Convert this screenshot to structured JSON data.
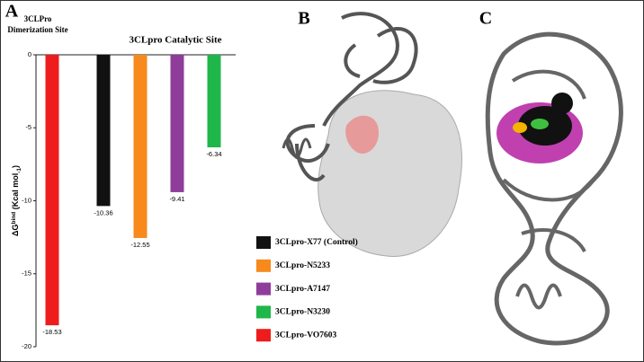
{
  "chart_data": {
    "type": "bar",
    "panel_labels": [
      "A",
      "B",
      "C"
    ],
    "y_label_parts": [
      "ΔG",
      "bind",
      " (Kcal mol",
      "-1",
      ")"
    ],
    "ylim": [
      -20,
      0
    ],
    "yticks": [
      0,
      -5,
      -10,
      -15,
      -20
    ],
    "series": [
      {
        "name": "3CLpro-X77 (Control)",
        "color": "#111111",
        "values": [
          -10.36
        ]
      },
      {
        "name": "3CLpro-N5233",
        "color": "#f7891d",
        "values": [
          -12.55
        ]
      },
      {
        "name": "3CLpro-A7147",
        "color": "#8e3d9a",
        "values": [
          -9.41
        ]
      },
      {
        "name": "3CLpro-N3230",
        "color": "#1fb64a",
        "values": [
          -6.34
        ]
      },
      {
        "name": "3CLpro-VO7603",
        "color": "#ee1c1c",
        "values": [
          -18.53
        ]
      }
    ],
    "groups": [
      {
        "label": [
          "3CLPro",
          "Dimerization Site"
        ],
        "series": [
          4
        ]
      },
      {
        "label": [
          "3CLpro Catalytic Site"
        ],
        "series": [
          0,
          1,
          2,
          3
        ]
      }
    ]
  }
}
